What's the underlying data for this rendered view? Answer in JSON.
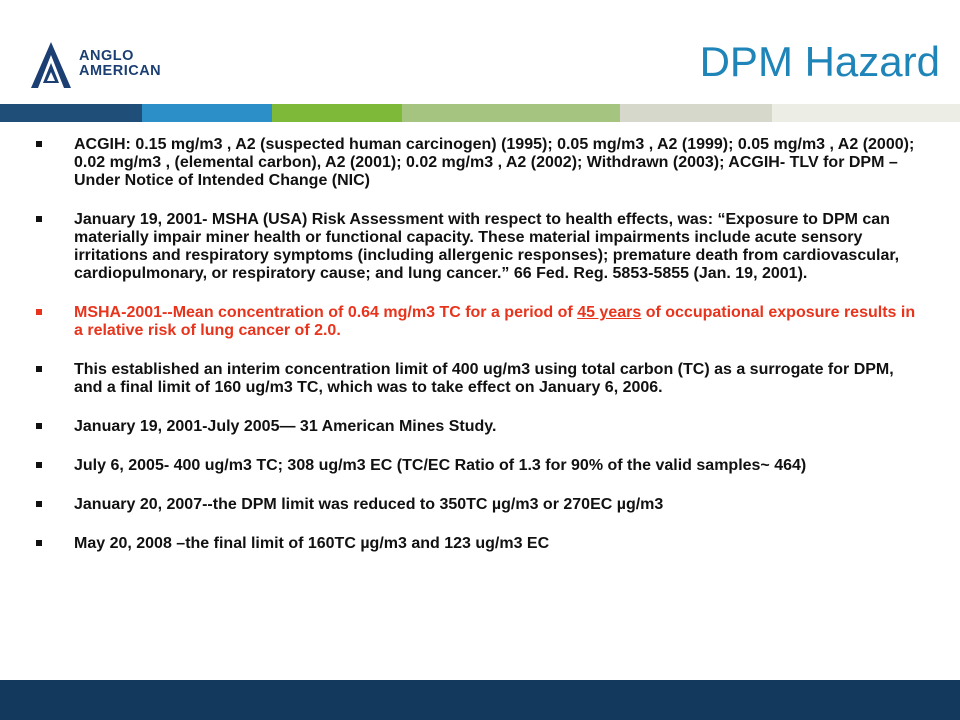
{
  "slide": {
    "title": "DPM Hazard"
  },
  "logo": {
    "line1": "ANGLO",
    "line2": "AMERICAN",
    "icon": "anglo-american-emblem"
  },
  "colors": {
    "title": "#1f84b8",
    "text": "#111111",
    "highlight": "#e8341c",
    "footer": "#133a5c",
    "logo": "#1b3f72",
    "bar": [
      "#1f4e79",
      "#2d8fc7",
      "#7fb93a",
      "#a5c47f",
      "#d6d8cc",
      "#eceee6"
    ]
  },
  "bullets": [
    {
      "text": "ACGIH: 0.15 mg/m3 , A2 (suspected human carcinogen) (1995); 0.05 mg/m3 , A2 (1999); 0.05 mg/m3 , A2 (2000); 0.02 mg/m3 , (elemental carbon), A2 (2001); 0.02 mg/m3 , A2 (2002); Withdrawn (2003); ACGIH- TLV for DPM –Under Notice of Intended Change (NIC)"
    },
    {
      "text": "January 19, 2001- MSHA (USA) Risk Assessment with respect to health effects, was: “Exposure to DPM can materially impair miner health or functional capacity. These material impairments include acute sensory irritations and respiratory symptoms (including allergenic responses); premature death from cardiovascular, cardiopulmonary, or respiratory cause; and lung cancer.” 66 Fed. Reg. 5853-5855 (Jan. 19, 2001)."
    },
    {
      "part1": "MSHA-2001--Mean concentration of 0.64 mg/m3 TC for a period of ",
      "underlined": "45 years",
      "part2": " of occupational exposure results in a relative risk of lung cancer of 2.0."
    },
    {
      "text": "This established an interim concentration limit of 400 ug/m3 using total carbon (TC) as a surrogate for DPM, and a final limit of 160 ug/m3 TC, which was to take effect on January 6, 2006."
    },
    {
      "text": "January 19, 2001-July 2005— 31 American Mines Study."
    },
    {
      "text": "July 6, 2005- 400 ug/m3 TC; 308 ug/m3 EC (TC/EC Ratio of 1.3 for 90% of the valid samples~ 464)"
    },
    {
      "text": "January 20, 2007--the DPM limit was reduced to 350TC µg/m3 or 270EC µg/m3"
    },
    {
      "text": "May 20, 2008 –the final limit of 160TC µg/m3 and 123 ug/m3 EC"
    }
  ]
}
